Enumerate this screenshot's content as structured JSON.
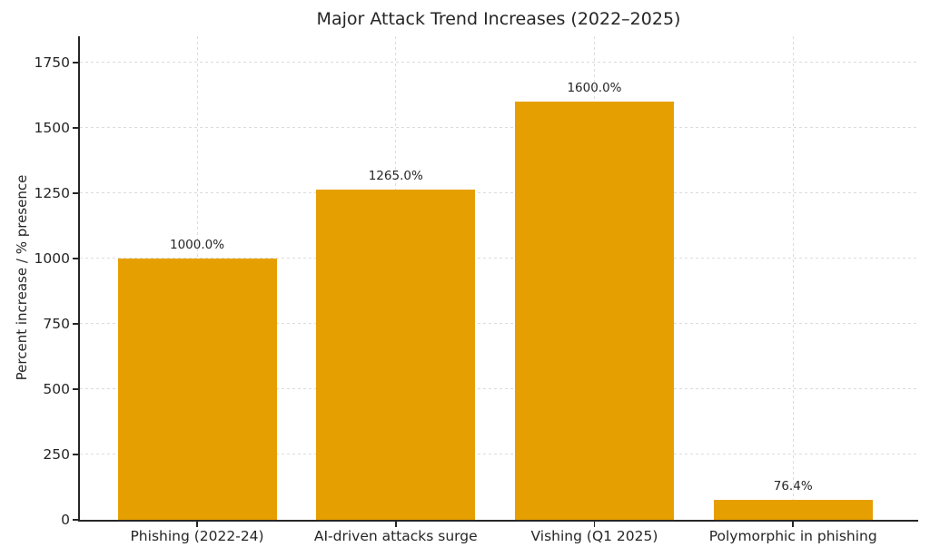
{
  "chart_data": {
    "type": "bar",
    "title": "Major Attack Trend Increases (2022–2025)",
    "xlabel": "",
    "ylabel": "Percent increase / % presence",
    "categories": [
      "Phishing (2022-24)",
      "AI-driven attacks surge",
      "Vishing (Q1 2025)",
      "Polymorphic in phishing"
    ],
    "values": [
      1000.0,
      1265.0,
      1600.0,
      76.4
    ],
    "value_labels": [
      "1000.0%",
      "1265.0%",
      "1600.0%",
      "76.4%"
    ],
    "yticks": [
      0,
      250,
      500,
      750,
      1000,
      1250,
      1500,
      1750
    ],
    "ylim": [
      0,
      1850
    ],
    "grid": "on, dashed horizontal lines at y-ticks and vertical lines at category centers",
    "legend_position": "none",
    "colors": {
      "bar": "#E69F00",
      "grid": "#dcdcdc",
      "axis": "#262626",
      "text": "#262626",
      "background": "#ffffff"
    }
  }
}
